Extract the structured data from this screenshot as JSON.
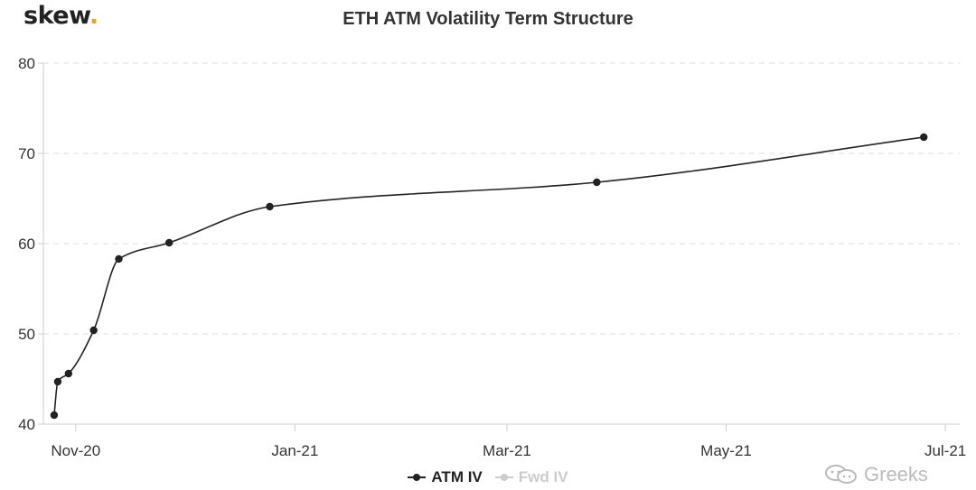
{
  "brand": {
    "name": "skew",
    "dot": "."
  },
  "watermark": {
    "text": "Greeks",
    "icon": "wechat-icon"
  },
  "colors": {
    "series": "#222222",
    "grid": "#dddddd",
    "axis": "#cccccc",
    "legend_off": "#cccccc",
    "brand_dot": "#e0a72c"
  },
  "chart_data": {
    "type": "line",
    "title": "ETH ATM Volatility Term Structure",
    "xlabel": "",
    "ylabel": "",
    "ylim": [
      40,
      80
    ],
    "xlim": [
      "2020-10-23",
      "2021-07-05"
    ],
    "y_ticks": [
      "40",
      "50",
      "60",
      "70",
      "80"
    ],
    "y_tick_values": [
      40,
      50,
      60,
      70,
      80
    ],
    "x_ticks": [
      {
        "label": "Nov-20",
        "date": "2020-11-01"
      },
      {
        "label": "Jan-21",
        "date": "2021-01-01"
      },
      {
        "label": "Mar-21",
        "date": "2021-03-01"
      },
      {
        "label": "May-21",
        "date": "2021-05-01"
      },
      {
        "label": "Jul-21",
        "date": "2021-07-01"
      }
    ],
    "grid": "horizontal dashed",
    "legend_position": "bottom-center",
    "series": [
      {
        "name": "ATM IV",
        "visible": true,
        "points": [
          {
            "x": "2020-10-26",
            "y": 41.0
          },
          {
            "x": "2020-10-27",
            "y": 44.7
          },
          {
            "x": "2020-10-30",
            "y": 45.6
          },
          {
            "x": "2020-11-06",
            "y": 50.4
          },
          {
            "x": "2020-11-13",
            "y": 58.3
          },
          {
            "x": "2020-11-27",
            "y": 60.1
          },
          {
            "x": "2020-12-25",
            "y": 64.1
          },
          {
            "x": "2021-03-26",
            "y": 66.8
          },
          {
            "x": "2021-06-25",
            "y": 71.8
          }
        ]
      },
      {
        "name": "Fwd IV",
        "visible": false,
        "points": []
      }
    ]
  }
}
